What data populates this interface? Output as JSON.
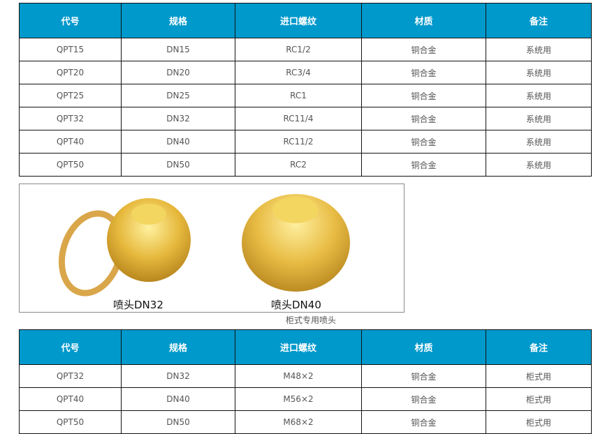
{
  "headers": [
    "代号",
    "规格",
    "进口螺纹",
    "材质",
    "备注"
  ],
  "table1": [
    [
      "QPT15",
      "DN15",
      "RC1/2",
      "铜合金",
      "系统用"
    ],
    [
      "QPT20",
      "DN20",
      "RC3/4",
      "铜合金",
      "系统用"
    ],
    [
      "QPT25",
      "DN25",
      "RC1",
      "铜合金",
      "系统用"
    ],
    [
      "QPT32",
      "DN32",
      "RC11/4",
      "铜合金",
      "系统用"
    ],
    [
      "QPT40",
      "DN40",
      "RC11/2",
      "铜合金",
      "系统用"
    ],
    [
      "QPT50",
      "DN50",
      "RC2",
      "铜合金",
      "系统用"
    ]
  ],
  "image": {
    "label_left": "喷头DN32",
    "label_right": "喷头DN40"
  },
  "caption": "柜式专用喷头",
  "table2": [
    [
      "QPT32",
      "DN32",
      "M48×2",
      "铜合金",
      "柜式用"
    ],
    [
      "QPT40",
      "DN40",
      "M56×2",
      "铜合金",
      "柜式用"
    ],
    [
      "QPT50",
      "DN50",
      "M68×2",
      "铜合金",
      "柜式用"
    ]
  ],
  "colors": {
    "header_bg": "#0099cc",
    "brass": "#e0b040"
  }
}
